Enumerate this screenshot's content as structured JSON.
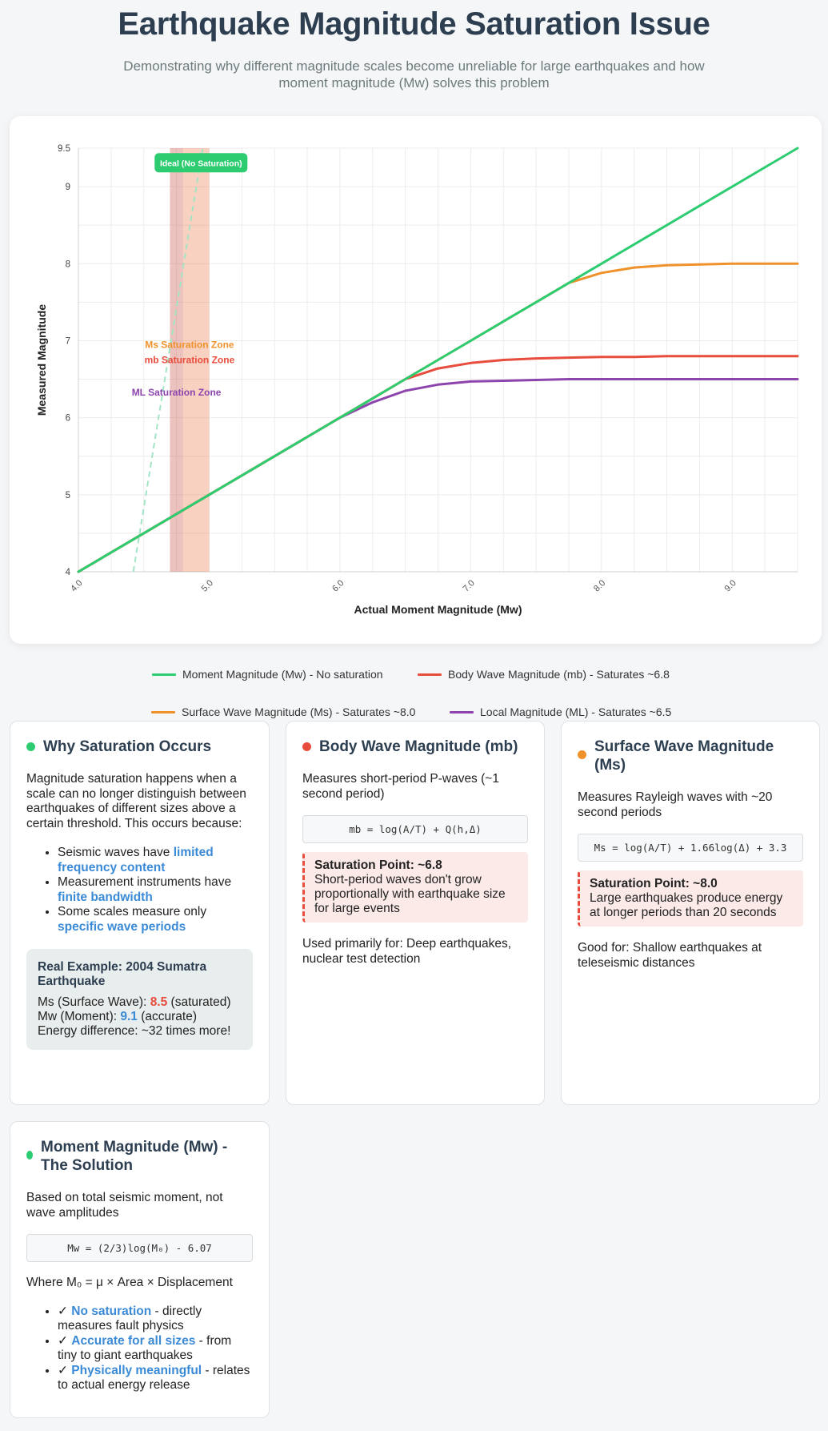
{
  "header": {
    "title": "Earthquake Magnitude Saturation Issue",
    "subtitle": "Demonstrating why different magnitude scales become unreliable for large earthquakes and how moment magnitude (Mw) solves this problem"
  },
  "chart_data": {
    "type": "line",
    "xlabel": "Actual Moment Magnitude (Mw)",
    "ylabel": "Measured Magnitude",
    "xlim": [
      4.0,
      9.5
    ],
    "ylim": [
      4,
      9.5
    ],
    "x_ticks": [
      "4.0",
      "5.0",
      "6.0",
      "7.0",
      "8.0",
      "9.0"
    ],
    "y_ticks": [
      "4",
      "5",
      "6",
      "7",
      "8",
      "9",
      "9.5"
    ],
    "grid": true,
    "legend_position": "bottom",
    "x": [
      4.0,
      4.5,
      5.0,
      5.5,
      6.0,
      6.25,
      6.5,
      6.75,
      7.0,
      7.25,
      7.5,
      7.75,
      8.0,
      8.25,
      8.5,
      8.75,
      9.0,
      9.25,
      9.5
    ],
    "series": [
      {
        "name": "Moment Magnitude (Mw) - No saturation",
        "color": "#2ecc71",
        "values": [
          4.0,
          4.5,
          5.0,
          5.5,
          6.0,
          6.25,
          6.5,
          6.75,
          7.0,
          7.25,
          7.5,
          7.75,
          8.0,
          8.25,
          8.5,
          8.75,
          9.0,
          9.25,
          9.5
        ]
      },
      {
        "name": "Body Wave Magnitude (mb) - Saturates ~6.8",
        "color": "#e74c3c",
        "values": [
          4.0,
          4.5,
          5.0,
          5.5,
          6.0,
          6.25,
          6.5,
          6.64,
          6.71,
          6.75,
          6.77,
          6.78,
          6.79,
          6.79,
          6.8,
          6.8,
          6.8,
          6.8,
          6.8
        ]
      },
      {
        "name": "Surface Wave Magnitude (Ms) - Saturates ~8.0",
        "color": "#f0922b",
        "values": [
          4.0,
          4.5,
          5.0,
          5.5,
          6.0,
          6.25,
          6.5,
          6.75,
          7.0,
          7.25,
          7.5,
          7.75,
          7.88,
          7.95,
          7.98,
          7.99,
          8.0,
          8.0,
          8.0
        ]
      },
      {
        "name": "Local Magnitude (ML) - Saturates ~6.5",
        "color": "#8e44ad",
        "values": [
          4.0,
          4.5,
          5.0,
          5.5,
          6.0,
          6.2,
          6.35,
          6.43,
          6.47,
          6.48,
          6.49,
          6.5,
          6.5,
          6.5,
          6.5,
          6.5,
          6.5,
          6.5,
          6.5
        ]
      }
    ],
    "ideal_line": {
      "label": "Ideal (No Saturation)",
      "color": "#a3e4c4",
      "x": [
        4.42,
        4.95
      ],
      "y": [
        4.0,
        9.5
      ]
    },
    "zones": [
      {
        "label": "Ms Saturation Zone",
        "color": "#f0922b",
        "x_range": [
          4.7,
          5.0
        ],
        "label_y": 6.95
      },
      {
        "label": "mb Saturation Zone",
        "color": "#e74c3c",
        "x_range": [
          4.7,
          5.0
        ],
        "label_y": 6.75
      },
      {
        "label": "ML Saturation Zone",
        "color": "#8e44ad",
        "x_range": [
          4.7,
          4.8
        ],
        "label_y": 6.33
      }
    ]
  },
  "cards": {
    "why": {
      "title": "Why Saturation Occurs",
      "dot_color": "#2ecc71",
      "intro": "Magnitude saturation happens when a scale can no longer distinguish between earthquakes of different sizes above a certain threshold. This occurs because:",
      "items": [
        {
          "pre": "Seismic waves have ",
          "hl": "limited frequency content",
          "post": ""
        },
        {
          "pre": "Measurement instruments have ",
          "hl": "finite bandwidth",
          "post": ""
        },
        {
          "pre": "Some scales measure only ",
          "hl": "specific wave periods",
          "post": ""
        }
      ],
      "example": {
        "title": "Real Example: 2004 Sumatra Earthquake",
        "ms_label": "Ms (Surface Wave): ",
        "ms_value": "8.5",
        "ms_note": " (saturated)",
        "mw_label": "Mw (Moment): ",
        "mw_value": "9.1",
        "mw_note": " (accurate)",
        "energy": "Energy difference: ~32 times more!"
      }
    },
    "mb": {
      "title": "Body Wave Magnitude (mb)",
      "dot_color": "#e74c3c",
      "desc": "Measures short-period P-waves (~1 second period)",
      "formula": "mb = log(A/T) + Q(h,Δ)",
      "sat_title": "Saturation Point: ~6.8",
      "sat_text": "Short-period waves don't grow proportionally with earthquake size for large events",
      "usage": "Used primarily for: Deep earthquakes, nuclear test detection"
    },
    "ms": {
      "title": "Surface Wave Magnitude (Ms)",
      "dot_color": "#f0922b",
      "desc": "Measures Rayleigh waves with ~20 second periods",
      "formula": "Ms = log(A/T) + 1.66log(Δ) + 3.3",
      "sat_title": "Saturation Point: ~8.0",
      "sat_text": "Large earthquakes produce energy at longer periods than 20 seconds",
      "usage": "Good for: Shallow earthquakes at teleseismic distances"
    },
    "mw": {
      "title": "Moment Magnitude (Mw) - The Solution",
      "dot_color": "#2ecc71",
      "desc": "Based on total seismic moment, not wave amplitudes",
      "formula": "Mw = (2/3)log(M₀) - 6.07",
      "where": "Where M₀ = μ × Area × Displacement",
      "items": [
        {
          "pre": "✓ ",
          "hl": "No saturation",
          "post": " - directly measures fault physics"
        },
        {
          "pre": "✓ ",
          "hl": "Accurate for all sizes",
          "post": " - from tiny to giant earthquakes"
        },
        {
          "pre": "✓ ",
          "hl": "Physically meaningful",
          "post": " - relates to actual energy release"
        }
      ]
    }
  }
}
